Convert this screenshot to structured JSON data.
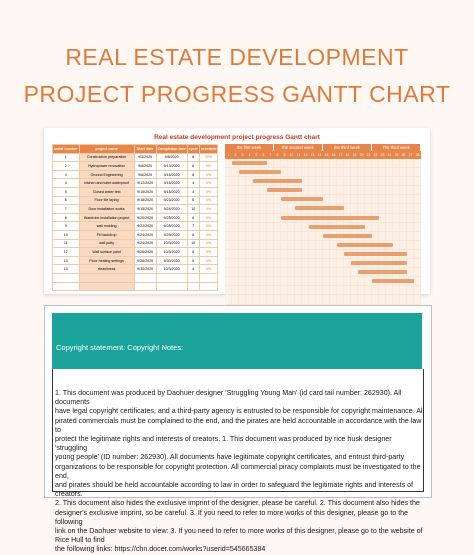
{
  "heading": {
    "line1": "REAL ESTATE DEVELOPMENT",
    "line2": "PROJECT PROGRESS GANTT CHART"
  },
  "sheet": {
    "title": "Real estate development project progress Gantt chart",
    "columns": [
      "serial number",
      "project name",
      "Start date",
      "Completion date",
      "cycle",
      "schedule"
    ],
    "weeks": [
      "the first week",
      "the second week",
      "the third week",
      "The third week"
    ],
    "days": [
      "1",
      "2",
      "3",
      "4",
      "5",
      "6",
      "7",
      "8",
      "9",
      "10",
      "11",
      "12",
      "13",
      "14",
      "15",
      "16",
      "17",
      "18",
      "19",
      "20",
      "21",
      "22",
      "23",
      "24",
      "25",
      "26",
      "27",
      "28"
    ],
    "rows": [
      {
        "num": "1",
        "name": "Construction preparation",
        "start": "9/3/2020",
        "end": "9/8/2020",
        "cycle": "6",
        "sched": "20%",
        "bar_start": 1,
        "bar_len": 5
      },
      {
        "num": "2",
        "name": "Hydropower renovation",
        "start": "9/8/2020",
        "end": "9/13/2020",
        "cycle": "6",
        "sched": "0%",
        "bar_start": 2,
        "bar_len": 6
      },
      {
        "num": "3",
        "name": "Ground Engineering",
        "start": "9/8/2020",
        "end": "9/15/2020",
        "cycle": "8",
        "sched": "0%",
        "bar_start": 4,
        "bar_len": 7
      },
      {
        "num": "4",
        "name": "kitchen and toilet waterproof",
        "start": "9/12/2020",
        "end": "9/15/2020",
        "cycle": "4",
        "sched": "0%",
        "bar_start": 6,
        "bar_len": 5
      },
      {
        "num": "5",
        "name": "Closed water test",
        "start": "9/15/2020",
        "end": "9/18/2020",
        "cycle": "4",
        "sched": "0%",
        "bar_start": 8,
        "bar_len": 6
      },
      {
        "num": "6",
        "name": "Floor tile laying",
        "start": "9/18/2020",
        "end": "9/23/2020",
        "cycle": "6",
        "sched": "0%",
        "bar_start": 10,
        "bar_len": 7
      },
      {
        "num": "7",
        "name": "Door installation works",
        "start": "9/15/2020",
        "end": "9/24/2020",
        "cycle": "10",
        "sched": "0%",
        "bar_start": 8,
        "bar_len": 14
      },
      {
        "num": "8",
        "name": "Wardrobe installation project",
        "start": "9/20/2020",
        "end": "9/25/2020",
        "cycle": "6",
        "sched": "0%",
        "bar_start": 12,
        "bar_len": 8
      },
      {
        "num": "9",
        "name": "wall molding",
        "start": "9/22/2020",
        "end": "9/28/2020",
        "cycle": "7",
        "sched": "0%",
        "bar_start": 14,
        "bar_len": 7
      },
      {
        "num": "10",
        "name": "Fit backdrop",
        "start": "9/24/2020",
        "end": "9/29/2020",
        "cycle": "6",
        "sched": "0%",
        "bar_start": 16,
        "bar_len": 8
      },
      {
        "num": "11",
        "name": "wall putty",
        "start": "9/24/2020",
        "end": "10/3/2020",
        "cycle": "10",
        "sched": "0%",
        "bar_start": 17,
        "bar_len": 9
      },
      {
        "num": "12",
        "name": "Wall surface paint",
        "start": "9/26/2020",
        "end": "10/3/2020",
        "cycle": "8",
        "sched": "0%",
        "bar_start": 18,
        "bar_len": 8
      },
      {
        "num": "13",
        "name": "Floor heating settings",
        "start": "9/26/2020",
        "end": "9/30/2020",
        "cycle": "5",
        "sched": "0%",
        "bar_start": 19,
        "bar_len": 7
      },
      {
        "num": "14",
        "name": "cleanliness",
        "start": "9/30/2020",
        "end": "10/3/2020",
        "cycle": "4",
        "sched": "0%",
        "bar_start": 21,
        "bar_len": 6
      }
    ]
  },
  "notice": {
    "header": "Copyright statement: Copyright Notes:",
    "lines": [
      "1. This document was produced by Daohuer designer 'Struggling Young Man' (id card tail number: 262930). All documents",
      "have legal copyright certificates, and a third-party agency is entrusted to be responsible for copyright maintenance. All",
      "pirated commercials must be complained to the end, and the pirates are held accountable in accordance with the law to",
      "protect the legitimate rights and interests of creators. 1. This document was produced by rice husk designer 'struggling",
      "young people' (ID number: 262930). All documents have legitimate copyright certificates, and entrust third-party",
      "organizations to be responsible for copyright protection. All commercial piracy complaints must be investigated to the end,",
      "and pirates should be held accountable according to law in order to safeguard the legitimate rights and interests of creators.",
      "2. This document also hides the exclusive imprint of the designer, please be careful. 2. This document also hides the",
      "designer's exclusive imprint, so be careful. 3. If you need to refer to more works of this designer, please go to the following",
      "link on the Daohuer website to view: 3. If you need to refer to more works of this designer, please go to the website of Rice Hull to find",
      "the following links: https://chn.docer.com/works?userid=545665384"
    ]
  }
}
